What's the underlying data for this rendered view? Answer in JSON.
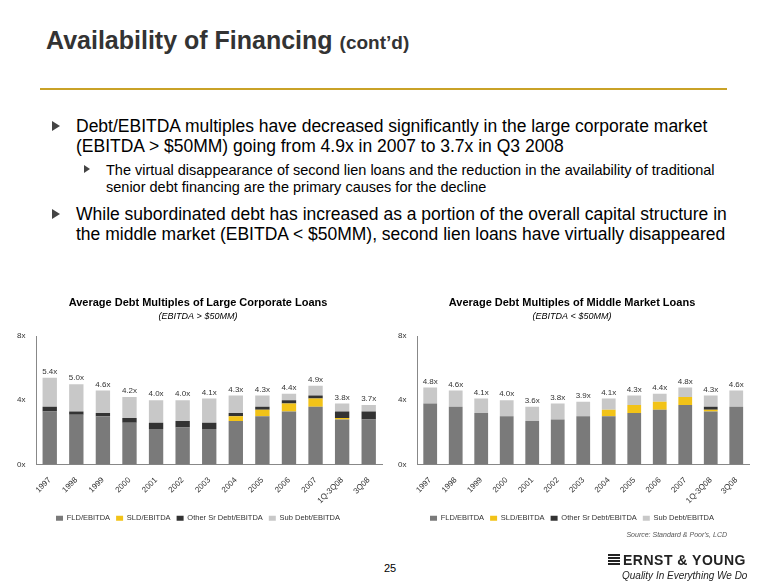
{
  "slide": {
    "title": "Availability of Financing",
    "title_suffix": "(cont’d)",
    "bullets": [
      {
        "text": "Debt/EBITDA multiples have decreased significantly in the large corporate market (EBITDA > $50MM) going from 4.9x in 2007 to 3.7x in Q3 2008",
        "sub": [
          "The virtual disappearance of second lien loans and the reduction in the availability of traditional senior debt financing are the primary causes for the decline"
        ]
      },
      {
        "text": "While subordinated debt has increased as a portion of the overall capital structure in the middle market (EBITDA < $50MM), second lien loans have virtually disappeared",
        "sub": []
      }
    ],
    "source": "Source: Standard & Poor's, LCD",
    "page": "25",
    "logo": "ERNST & YOUNG",
    "tagline": "Quality In Everything We Do"
  },
  "chart_data": [
    {
      "type": "bar",
      "stacked": true,
      "grid": false,
      "legend": "bottom",
      "title": "Average Debt Multiples of Large Corporate Loans",
      "subtitle": "(EBITDA > $50MM)",
      "categories": [
        "1997",
        "1998",
        "1999",
        "2000",
        "2001",
        "2002",
        "2003",
        "2004",
        "2005",
        "2006",
        "2007",
        "1Q-3Q08",
        "3Q08"
      ],
      "series": [
        {
          "name": "FLD/EBITDA",
          "color": "#7a7a7a",
          "values": [
            3.3,
            3.1,
            3.0,
            2.6,
            2.2,
            2.3,
            2.2,
            2.7,
            3.0,
            3.3,
            3.6,
            2.8,
            2.8
          ]
        },
        {
          "name": "SLD/EBITDA",
          "color": "#f2c318",
          "values": [
            0,
            0,
            0,
            0,
            0,
            0,
            0,
            0.3,
            0.4,
            0.5,
            0.5,
            0.1,
            0
          ]
        },
        {
          "name": "Other Sr Debt/EBITDA",
          "color": "#333333",
          "values": [
            0.3,
            0.2,
            0.2,
            0.3,
            0.4,
            0.4,
            0.4,
            0.2,
            0.2,
            0.2,
            0.2,
            0.4,
            0.5
          ]
        },
        {
          "name": "Sub Debt/EBITDA",
          "color": "#c8c8c8",
          "values": [
            1.8,
            1.7,
            1.4,
            1.3,
            1.4,
            1.3,
            1.5,
            1.1,
            0.7,
            0.4,
            0.6,
            0.5,
            0.4
          ]
        }
      ],
      "totals": [
        5.4,
        5.0,
        4.6,
        4.2,
        4.0,
        4.0,
        4.1,
        4.3,
        4.3,
        4.4,
        4.9,
        3.8,
        3.7
      ],
      "total_labels": [
        "5.4x",
        "5.0x",
        "4.6x",
        "4.2x",
        "4.0x",
        "4.0x",
        "4.1x",
        "4.3x",
        "4.3x",
        "4.4x",
        "4.9x",
        "3.8x",
        "3.7x"
      ],
      "ylim": [
        0,
        8
      ],
      "yticks": [
        {
          "value": 0,
          "label": "0x"
        },
        {
          "value": 4,
          "label": "4x"
        },
        {
          "value": 8,
          "label": "8x"
        }
      ]
    },
    {
      "type": "bar",
      "stacked": true,
      "grid": false,
      "legend": "bottom",
      "title": "Average Debt Multiples of Middle Market Loans",
      "subtitle": "(EBITDA < $50MM)",
      "categories": [
        "1997",
        "1998",
        "1999",
        "2000",
        "2001",
        "2002",
        "2003",
        "2004",
        "2005",
        "2006",
        "2007",
        "1Q-3Q08",
        "3Q08"
      ],
      "series": [
        {
          "name": "FLD/EBITDA",
          "color": "#7a7a7a",
          "values": [
            3.8,
            3.6,
            3.2,
            3.0,
            2.7,
            2.8,
            3.0,
            3.0,
            3.2,
            3.4,
            3.7,
            3.3,
            3.6
          ]
        },
        {
          "name": "SLD/EBITDA",
          "color": "#f2c318",
          "values": [
            0,
            0,
            0,
            0,
            0,
            0,
            0,
            0.4,
            0.5,
            0.5,
            0.5,
            0.1,
            0
          ]
        },
        {
          "name": "Other Sr Debt/EBITDA",
          "color": "#333333",
          "values": [
            0,
            0,
            0,
            0,
            0,
            0,
            0,
            0,
            0,
            0,
            0,
            0.2,
            0
          ]
        },
        {
          "name": "Sub Debt/EBITDA",
          "color": "#c8c8c8",
          "values": [
            1.0,
            1.0,
            0.9,
            1.0,
            0.9,
            1.0,
            0.9,
            0.7,
            0.6,
            0.5,
            0.6,
            0.7,
            1.0
          ]
        }
      ],
      "totals": [
        4.8,
        4.6,
        4.1,
        4.0,
        3.6,
        3.8,
        3.9,
        4.1,
        4.3,
        4.4,
        4.8,
        4.3,
        4.6
      ],
      "total_labels": [
        "4.8x",
        "4.6x",
        "4.1x",
        "4.0x",
        "3.6x",
        "3.8x",
        "3.9x",
        "4.1x",
        "4.3x",
        "4.4x",
        "4.8x",
        "4.3x",
        "4.6x"
      ],
      "ylim": [
        0,
        8
      ],
      "yticks": [
        {
          "value": 0,
          "label": "0x"
        },
        {
          "value": 4,
          "label": "4x"
        },
        {
          "value": 8,
          "label": "8x"
        }
      ]
    }
  ]
}
